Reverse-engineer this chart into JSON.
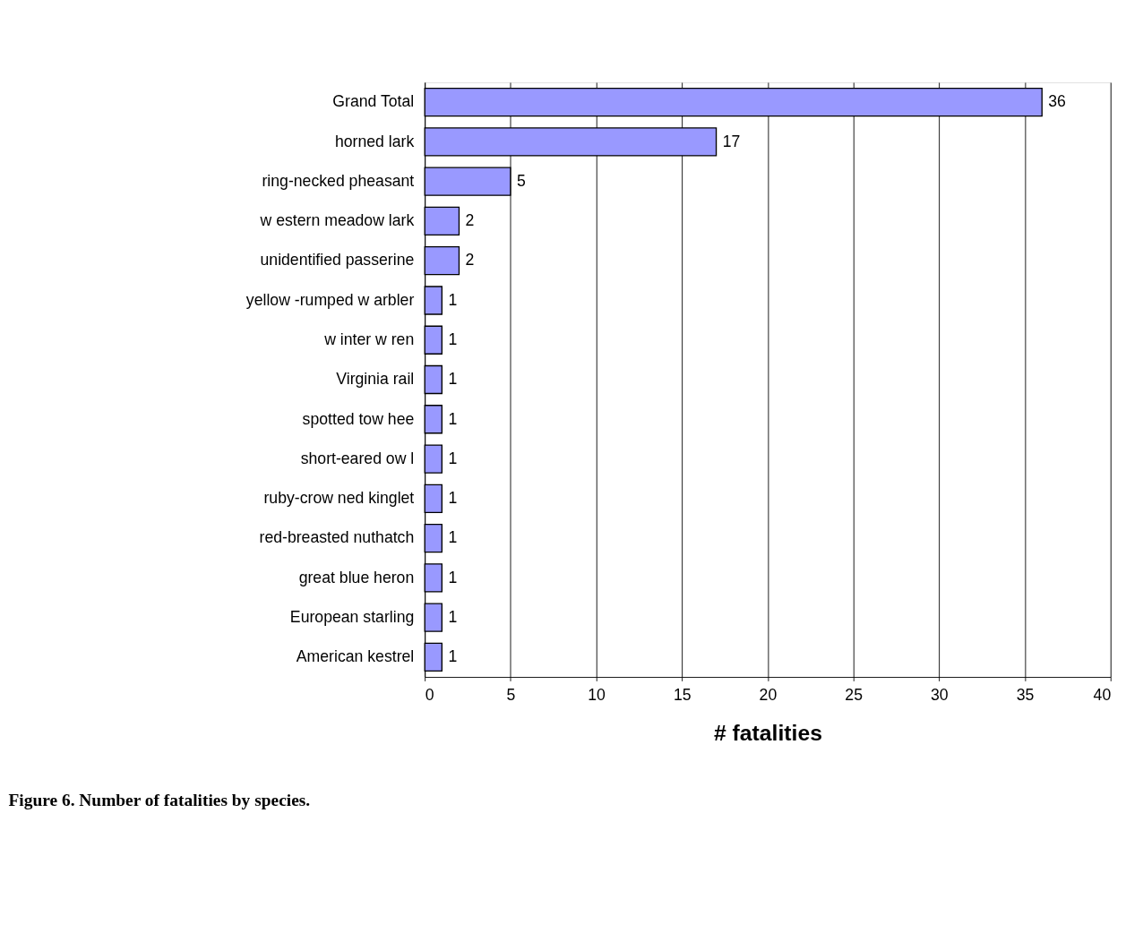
{
  "chart_data": {
    "type": "bar",
    "orientation": "horizontal",
    "categories": [
      "Grand Total",
      "horned lark",
      "ring-necked pheasant",
      "w estern meadow lark",
      "unidentified passerine",
      "yellow -rumped w arbler",
      "w inter w ren",
      "Virginia rail",
      "spotted tow hee",
      "short-eared ow l",
      "ruby-crow ned kinglet",
      "red-breasted nuthatch",
      "great blue heron",
      "European starling",
      "American kestrel"
    ],
    "values": [
      36,
      17,
      5,
      2,
      2,
      1,
      1,
      1,
      1,
      1,
      1,
      1,
      1,
      1,
      1
    ],
    "color": "#9999ff",
    "xlabel": "# fatalities",
    "xlim": [
      0,
      40
    ],
    "xticks": [
      0,
      5,
      10,
      15,
      20,
      25,
      30,
      35,
      40
    ],
    "grid": "x",
    "data_labels": true,
    "annotations": [
      "Figure 6.  Number of fatalities by species."
    ]
  }
}
